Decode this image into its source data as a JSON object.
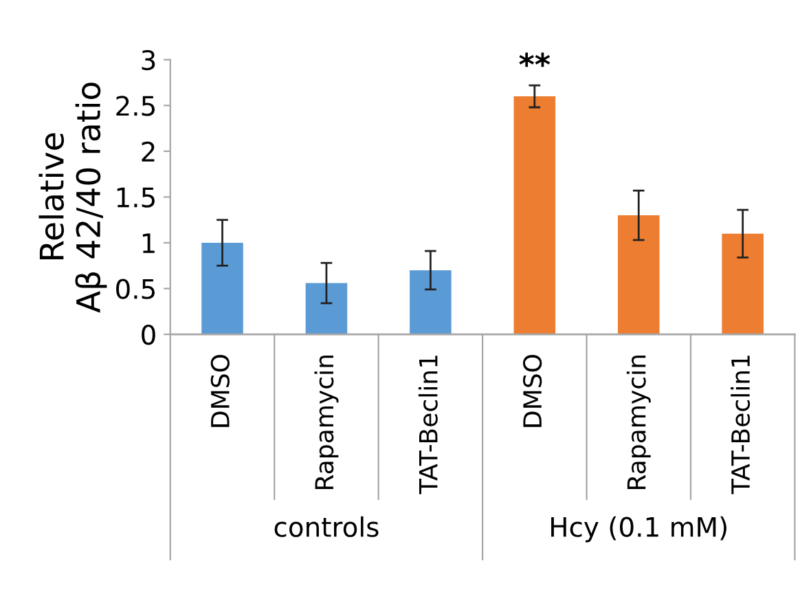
{
  "chart_data": {
    "type": "bar",
    "ylabel": "Relative\nAβ 42/40 ratio",
    "categories": [
      "DMSO",
      "Rapamycin",
      "TAT-Beclin1",
      "DMSO",
      "Rapamycin",
      "TAT-Beclin1"
    ],
    "values": [
      1.0,
      0.56,
      0.7,
      2.6,
      1.3,
      1.1
    ],
    "errors": [
      0.25,
      0.22,
      0.21,
      0.12,
      0.27,
      0.26
    ],
    "colors": [
      "#5b9bd5",
      "#5b9bd5",
      "#5b9bd5",
      "#ed7d31",
      "#ed7d31",
      "#ed7d31"
    ],
    "ylim": [
      0,
      3
    ],
    "yticks": [
      0,
      0.5,
      1,
      1.5,
      2,
      2.5,
      3
    ],
    "grid": false,
    "annotations": [
      "**",
      "controls",
      "Hcy (0.1 mM)"
    ]
  }
}
